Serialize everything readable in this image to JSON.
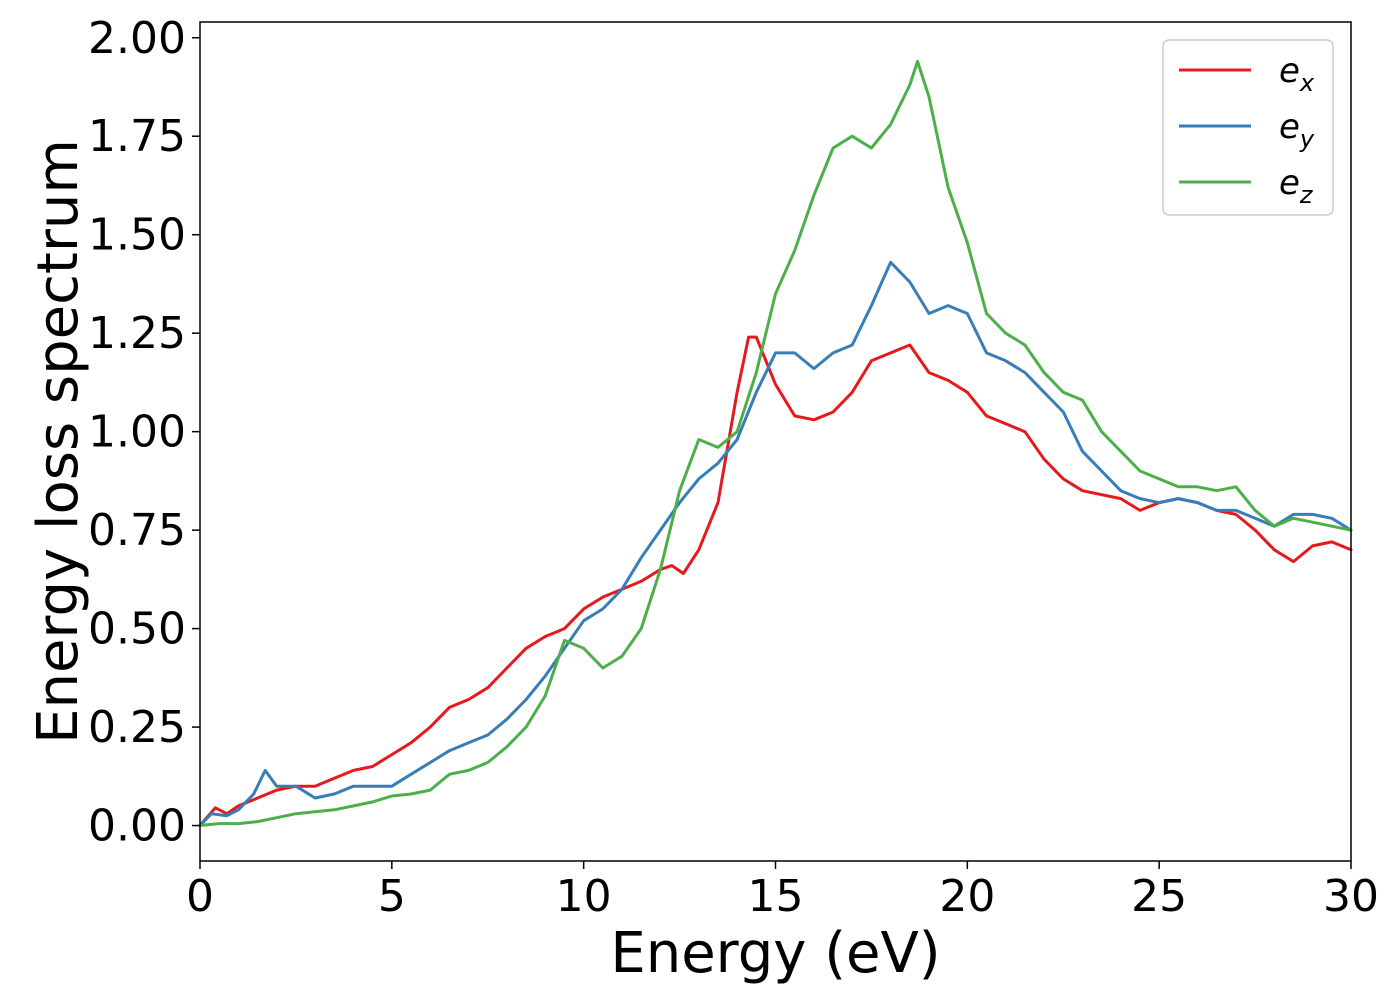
{
  "chart_data": {
    "type": "line",
    "title": "",
    "xlabel": "Energy (eV)",
    "ylabel": "Energy loss spectrum",
    "xlim": [
      0,
      30
    ],
    "ylim": [
      -0.09,
      2.04
    ],
    "xticks": [
      0,
      5,
      10,
      15,
      20,
      25,
      30
    ],
    "xtick_labels": [
      "0",
      "5",
      "10",
      "15",
      "20",
      "25",
      "30"
    ],
    "yticks": [
      0.0,
      0.25,
      0.5,
      0.75,
      1.0,
      1.25,
      1.5,
      1.75,
      2.0
    ],
    "ytick_labels": [
      "0.00",
      "0.25",
      "0.50",
      "0.75",
      "1.00",
      "1.25",
      "1.50",
      "1.75",
      "2.00"
    ],
    "grid": false,
    "legend_position": "top-right",
    "series": [
      {
        "name": "e_x",
        "label_base": "e",
        "label_sub": "x",
        "color": "#e41a1c",
        "x": [
          0,
          0.4,
          0.7,
          1.0,
          1.5,
          2.0,
          2.5,
          3.0,
          3.5,
          4.0,
          4.5,
          5.0,
          5.5,
          6.0,
          6.5,
          7.0,
          7.5,
          8.0,
          8.5,
          9.0,
          9.5,
          10.0,
          10.5,
          11.0,
          11.5,
          12.0,
          12.3,
          12.6,
          13.0,
          13.5,
          14.0,
          14.3,
          14.5,
          15.0,
          15.5,
          16.0,
          16.5,
          17.0,
          17.5,
          18.0,
          18.5,
          19.0,
          19.5,
          20.0,
          20.5,
          21.0,
          21.5,
          22.0,
          22.5,
          23.0,
          23.5,
          24.0,
          24.5,
          25.0,
          25.5,
          26.0,
          26.5,
          27.0,
          27.5,
          28.0,
          28.5,
          29.0,
          29.5,
          30.0
        ],
        "y": [
          0.0,
          0.045,
          0.03,
          0.05,
          0.07,
          0.09,
          0.1,
          0.1,
          0.12,
          0.14,
          0.15,
          0.18,
          0.21,
          0.25,
          0.3,
          0.32,
          0.35,
          0.4,
          0.45,
          0.48,
          0.5,
          0.55,
          0.58,
          0.6,
          0.62,
          0.65,
          0.66,
          0.64,
          0.7,
          0.82,
          1.1,
          1.24,
          1.24,
          1.12,
          1.04,
          1.03,
          1.05,
          1.1,
          1.18,
          1.2,
          1.22,
          1.15,
          1.13,
          1.1,
          1.04,
          1.02,
          1.0,
          0.93,
          0.88,
          0.85,
          0.84,
          0.83,
          0.8,
          0.82,
          0.83,
          0.82,
          0.8,
          0.79,
          0.75,
          0.7,
          0.67,
          0.71,
          0.72,
          0.7
        ]
      },
      {
        "name": "e_y",
        "label_base": "e",
        "label_sub": "y",
        "color": "#377eb8",
        "x": [
          0,
          0.3,
          0.7,
          1.0,
          1.4,
          1.7,
          2.0,
          2.5,
          3.0,
          3.5,
          4.0,
          4.5,
          5.0,
          5.5,
          6.0,
          6.5,
          7.0,
          7.5,
          8.0,
          8.5,
          9.0,
          9.5,
          10.0,
          10.5,
          11.0,
          11.5,
          12.0,
          12.5,
          13.0,
          13.5,
          14.0,
          14.5,
          15.0,
          15.5,
          16.0,
          16.5,
          17.0,
          17.5,
          18.0,
          18.5,
          19.0,
          19.5,
          20.0,
          20.5,
          21.0,
          21.5,
          22.0,
          22.5,
          23.0,
          23.5,
          24.0,
          24.5,
          25.0,
          25.5,
          26.0,
          26.5,
          27.0,
          27.5,
          28.0,
          28.5,
          29.0,
          29.5,
          30.0
        ],
        "y": [
          0.0,
          0.03,
          0.025,
          0.04,
          0.08,
          0.14,
          0.1,
          0.1,
          0.07,
          0.08,
          0.1,
          0.1,
          0.1,
          0.13,
          0.16,
          0.19,
          0.21,
          0.23,
          0.27,
          0.32,
          0.38,
          0.45,
          0.52,
          0.55,
          0.6,
          0.68,
          0.75,
          0.82,
          0.88,
          0.92,
          0.98,
          1.1,
          1.2,
          1.2,
          1.16,
          1.2,
          1.22,
          1.32,
          1.43,
          1.38,
          1.3,
          1.32,
          1.3,
          1.2,
          1.18,
          1.15,
          1.1,
          1.05,
          0.95,
          0.9,
          0.85,
          0.83,
          0.82,
          0.83,
          0.82,
          0.8,
          0.8,
          0.78,
          0.76,
          0.79,
          0.79,
          0.78,
          0.75
        ]
      },
      {
        "name": "e_z",
        "label_base": "e",
        "label_sub": "z",
        "color": "#4daf4a",
        "x": [
          0,
          0.5,
          1.0,
          1.5,
          2.0,
          2.5,
          3.0,
          3.5,
          4.0,
          4.5,
          5.0,
          5.5,
          6.0,
          6.5,
          7.0,
          7.5,
          8.0,
          8.5,
          9.0,
          9.5,
          10.0,
          10.5,
          11.0,
          11.5,
          12.0,
          12.5,
          13.0,
          13.5,
          14.0,
          14.5,
          15.0,
          15.5,
          16.0,
          16.5,
          17.0,
          17.5,
          18.0,
          18.5,
          18.7,
          19.0,
          19.5,
          20.0,
          20.5,
          21.0,
          21.5,
          22.0,
          22.5,
          23.0,
          23.5,
          24.0,
          24.5,
          25.0,
          25.5,
          26.0,
          26.5,
          27.0,
          27.5,
          28.0,
          28.5,
          29.0,
          29.5,
          30.0
        ],
        "y": [
          0.0,
          0.005,
          0.005,
          0.01,
          0.02,
          0.03,
          0.035,
          0.04,
          0.05,
          0.06,
          0.075,
          0.08,
          0.09,
          0.13,
          0.14,
          0.16,
          0.2,
          0.25,
          0.33,
          0.47,
          0.45,
          0.4,
          0.43,
          0.5,
          0.65,
          0.85,
          0.98,
          0.96,
          1.0,
          1.15,
          1.35,
          1.46,
          1.6,
          1.72,
          1.75,
          1.72,
          1.78,
          1.88,
          1.94,
          1.85,
          1.62,
          1.48,
          1.3,
          1.25,
          1.22,
          1.15,
          1.1,
          1.08,
          1.0,
          0.95,
          0.9,
          0.88,
          0.86,
          0.86,
          0.85,
          0.86,
          0.8,
          0.76,
          0.78,
          0.77,
          0.76,
          0.75
        ]
      }
    ]
  }
}
